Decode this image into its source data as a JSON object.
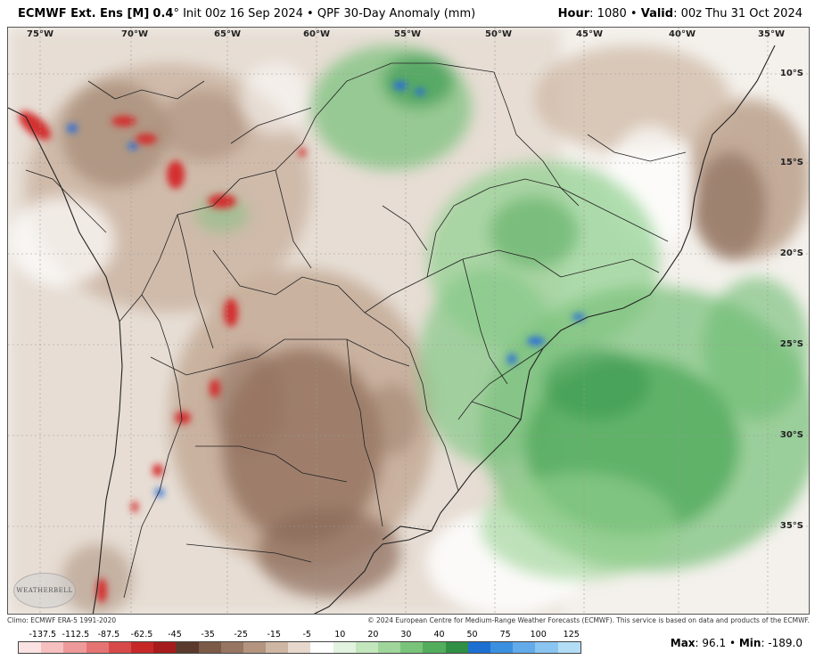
{
  "header": {
    "model": "ECMWF Ext. Ens [M]",
    "resolution": "0.4",
    "degree": "°",
    "init": "Init 00z 16 Sep 2024",
    "bullet": "•",
    "product": "QPF 30-Day Anomaly (mm)",
    "hour_label": "Hour",
    "hour_value": ": 1080",
    "valid_label": "Valid",
    "valid_value": ": 00z Thu 31 Oct 2024"
  },
  "map": {
    "lon_labels": [
      "75°W",
      "70°W",
      "65°W",
      "60°W",
      "55°W",
      "50°W",
      "45°W",
      "40°W",
      "35°W"
    ],
    "lat_labels": [
      "10°S",
      "15°S",
      "20°S",
      "25°S",
      "30°S",
      "35°S"
    ],
    "logo_text": "WEATHERBELL",
    "colors": {
      "dry_dark": "#6b4c3a",
      "dry_mid": "#a07f68",
      "dry_light": "#d2bfae",
      "wet_light": "#b9e2b5",
      "wet_mid": "#5fb368",
      "wet_dark": "#2f8a44",
      "extreme_wet": "#2a6dd8",
      "extreme_dry": "#d32f2f"
    }
  },
  "footer": {
    "climo": "Climo: ECMWF ERA-5 1991-2020",
    "copyright": "© 2024 European Centre for Medium-Range Weather Forecasts (ECMWF). This service is based on data and products of the ECMWF."
  },
  "colorbar": {
    "labels": [
      "-137.5",
      "-112.5",
      "-87.5",
      "-62.5",
      "-45",
      "-35",
      "-25",
      "-15",
      "-5",
      "10",
      "20",
      "30",
      "40",
      "50",
      "75",
      "100",
      "125"
    ],
    "colors": [
      "#fbe3e3",
      "#f6c0c0",
      "#ee9a9a",
      "#e57373",
      "#d84a4a",
      "#c62828",
      "#a61c1c",
      "#5a3a2c",
      "#7b5a47",
      "#977563",
      "#b3957f",
      "#cdb6a3",
      "#e6d8cc",
      "#ffffff",
      "#e2f3df",
      "#c3e6bd",
      "#9fd59a",
      "#79c37a",
      "#52ae5c",
      "#2f8f45",
      "#1d6fd1",
      "#3b8fe0",
      "#62aaea",
      "#8ac5f1",
      "#b3ddf7"
    ]
  },
  "stats": {
    "max_label": "Max",
    "max_value": ": 96.1",
    "min_label": "Min",
    "min_value": ": -189.0"
  }
}
